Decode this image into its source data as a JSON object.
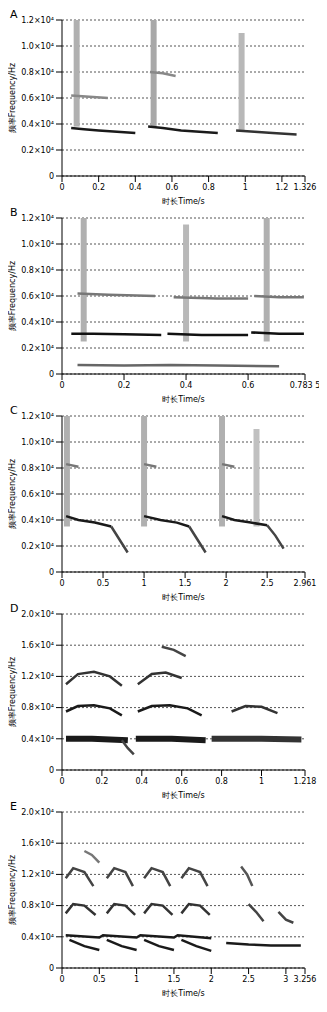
{
  "chart_data": [
    {
      "type": "line",
      "title": "A",
      "x_label": "时长Time/s",
      "y_label": "频率Frequency/Hz",
      "grid": true,
      "xlim": [
        0,
        1.326
      ],
      "xticks": [
        0,
        0.2,
        0.4,
        0.6,
        0.8,
        1,
        1.2,
        1.326
      ],
      "ylim": [
        0,
        12000
      ],
      "yticks": [
        0,
        {
          "value": 2000,
          "label": "0.2×10⁴"
        },
        {
          "value": 4000,
          "label": "0.4×10⁴"
        },
        {
          "value": 6000,
          "label": "0.6×10⁴"
        },
        {
          "value": 8000,
          "label": "0.8×10⁴"
        },
        {
          "value": 10000,
          "label": "1.0×10⁴"
        },
        {
          "value": 12000,
          "label": "1.2×10⁴"
        }
      ],
      "series": [
        {
          "type": "band",
          "color": "#b0b0b0",
          "x": [
            0.08,
            0.08
          ],
          "values": [
            3800,
            12000
          ]
        },
        {
          "type": "band",
          "color": "#a8a8a8",
          "x": [
            0.5,
            0.5
          ],
          "values": [
            3800,
            12000
          ]
        },
        {
          "type": "band",
          "color": "#b8b8b8",
          "x": [
            0.98,
            0.98
          ],
          "values": [
            3500,
            11000
          ]
        },
        {
          "type": "line",
          "color": "#888888",
          "x": [
            0.48,
            0.55,
            0.62
          ],
          "values": [
            8000,
            7900,
            7700
          ]
        },
        {
          "type": "line",
          "color": "#888888",
          "x": [
            0.05,
            0.15,
            0.25
          ],
          "values": [
            6200,
            6100,
            6000
          ]
        },
        {
          "type": "line",
          "color": "#1a1a1a",
          "x": [
            0.05,
            0.12,
            0.2,
            0.3,
            0.4
          ],
          "values": [
            3700,
            3600,
            3500,
            3400,
            3300
          ]
        },
        {
          "type": "line",
          "color": "#1a1a1a",
          "x": [
            0.47,
            0.55,
            0.65,
            0.75,
            0.85
          ],
          "values": [
            3800,
            3700,
            3500,
            3400,
            3300
          ]
        },
        {
          "type": "line",
          "color": "#333333",
          "x": [
            0.95,
            1.05,
            1.15,
            1.28
          ],
          "values": [
            3500,
            3400,
            3300,
            3200
          ]
        }
      ]
    },
    {
      "type": "line",
      "title": "B",
      "x_label": "时长Time/s",
      "y_label": "频率Frequency/Hz",
      "grid": true,
      "xlim": [
        0,
        0.7835
      ],
      "xticks": [
        0,
        0.2,
        0.4,
        0.6,
        {
          "value": 0.7835,
          "label": "0.783 5"
        }
      ],
      "ylim": [
        0,
        12000
      ],
      "yticks": [
        0,
        {
          "value": 2000,
          "label": "0.2×10⁴"
        },
        {
          "value": 4000,
          "label": "0.4×10⁴"
        },
        {
          "value": 6000,
          "label": "0.6×10⁴"
        },
        {
          "value": 8000,
          "label": "0.8×10⁴"
        },
        {
          "value": 10000,
          "label": "1.0×10⁴"
        },
        {
          "value": 12000,
          "label": "1.2×10⁴"
        }
      ],
      "series": [
        {
          "type": "band",
          "color": "#b0b0b0",
          "x": [
            0.07,
            0.07
          ],
          "values": [
            2500,
            12000
          ]
        },
        {
          "type": "band",
          "color": "#b8b8b8",
          "x": [
            0.4,
            0.4
          ],
          "values": [
            2500,
            11500
          ]
        },
        {
          "type": "band",
          "color": "#b0b0b0",
          "x": [
            0.66,
            0.66
          ],
          "values": [
            2500,
            12000
          ]
        },
        {
          "type": "line",
          "color": "#777777",
          "x": [
            0.05,
            0.15,
            0.3
          ],
          "values": [
            6200,
            6100,
            6000
          ]
        },
        {
          "type": "line",
          "color": "#777777",
          "x": [
            0.36,
            0.5,
            0.6
          ],
          "values": [
            5900,
            5800,
            5800
          ]
        },
        {
          "type": "line",
          "color": "#777777",
          "x": [
            0.62,
            0.7,
            0.78
          ],
          "values": [
            6000,
            5900,
            5900
          ]
        },
        {
          "type": "line",
          "color": "#111111",
          "x": [
            0.03,
            0.1,
            0.2,
            0.32
          ],
          "values": [
            3100,
            3100,
            3050,
            3000
          ]
        },
        {
          "type": "line",
          "color": "#111111",
          "x": [
            0.34,
            0.45,
            0.6
          ],
          "values": [
            3100,
            3000,
            3000
          ]
        },
        {
          "type": "line",
          "color": "#111111",
          "x": [
            0.61,
            0.7,
            0.78
          ],
          "values": [
            3200,
            3100,
            3100
          ]
        },
        {
          "type": "line",
          "color": "#666666",
          "x": [
            0.05,
            0.2,
            0.35,
            0.5,
            0.7
          ],
          "values": [
            700,
            650,
            700,
            650,
            600
          ]
        }
      ]
    },
    {
      "type": "line",
      "title": "C",
      "x_label": "时长Time/s",
      "y_label": "频率Frequency/Hz",
      "grid": true,
      "xlim": [
        0,
        2.961
      ],
      "xticks": [
        0,
        0.5,
        1,
        1.5,
        2,
        2.5,
        2.961
      ],
      "ylim": [
        0,
        12000
      ],
      "yticks": [
        0,
        {
          "value": 2000,
          "label": "0.2×10⁴"
        },
        {
          "value": 4000,
          "label": "0.4×10⁴"
        },
        {
          "value": 6000,
          "label": "0.6×10⁴"
        },
        {
          "value": 8000,
          "label": "0.8×10⁴"
        },
        {
          "value": 10000,
          "label": "1.0×10⁴"
        },
        {
          "value": 12000,
          "label": "1.2×10⁴"
        }
      ],
      "series": [
        {
          "type": "band",
          "color": "#b0b0b0",
          "x": [
            0.06,
            0.06
          ],
          "values": [
            3500,
            12000
          ]
        },
        {
          "type": "band",
          "color": "#b0b0b0",
          "x": [
            1.0,
            1.0
          ],
          "values": [
            3500,
            12000
          ]
        },
        {
          "type": "band",
          "color": "#b0b0b0",
          "x": [
            1.95,
            1.95
          ],
          "values": [
            3500,
            12000
          ]
        },
        {
          "type": "band",
          "color": "#c0c0c0",
          "x": [
            2.37,
            2.37
          ],
          "values": [
            3500,
            11000
          ]
        },
        {
          "type": "line",
          "color": "#777777",
          "x": [
            0.05,
            0.2
          ],
          "values": [
            8300,
            8100
          ]
        },
        {
          "type": "line",
          "color": "#777777",
          "x": [
            1.0,
            1.15
          ],
          "values": [
            8300,
            8100
          ]
        },
        {
          "type": "line",
          "color": "#777777",
          "x": [
            1.95,
            2.1
          ],
          "values": [
            8300,
            8100
          ]
        },
        {
          "type": "line",
          "color": "#1a1a1a",
          "x": [
            0.05,
            0.2,
            0.4,
            0.6
          ],
          "values": [
            4300,
            4000,
            3800,
            3500
          ]
        },
        {
          "type": "line",
          "color": "#444444",
          "x": [
            0.6,
            0.7,
            0.8
          ],
          "values": [
            3500,
            2500,
            1500
          ]
        },
        {
          "type": "line",
          "color": "#1a1a1a",
          "x": [
            1.0,
            1.2,
            1.4,
            1.55
          ],
          "values": [
            4300,
            4000,
            3800,
            3500
          ]
        },
        {
          "type": "line",
          "color": "#444444",
          "x": [
            1.55,
            1.65,
            1.75
          ],
          "values": [
            3500,
            2500,
            1500
          ]
        },
        {
          "type": "line",
          "color": "#1a1a1a",
          "x": [
            1.95,
            2.1,
            2.3,
            2.5
          ],
          "values": [
            4300,
            4000,
            3800,
            3600
          ]
        },
        {
          "type": "line",
          "color": "#444444",
          "x": [
            2.5,
            2.6,
            2.7
          ],
          "values": [
            3600,
            2800,
            1800
          ]
        }
      ]
    },
    {
      "type": "line",
      "title": "D",
      "x_label": "时长Time/s",
      "y_label": "频率Frequency/Hz",
      "grid": true,
      "xlim": [
        0,
        1.218
      ],
      "xticks": [
        0,
        0.2,
        0.4,
        0.6,
        0.8,
        1,
        1.218
      ],
      "ylim": [
        0,
        20000
      ],
      "yticks": [
        0,
        {
          "value": 4000,
          "label": "0.4×10⁴"
        },
        {
          "value": 8000,
          "label": "0.8×10⁴"
        },
        {
          "value": 12000,
          "label": "1.2×10⁴"
        },
        {
          "value": 16000,
          "label": "1.6×10⁴"
        },
        {
          "value": 20000,
          "label": "2.0×10⁴"
        }
      ],
      "series": [
        {
          "type": "band",
          "color": "#1a1a1a",
          "x": [
            0.02,
            0.15,
            0.33
          ],
          "values": [
            4000,
            4000,
            3800
          ]
        },
        {
          "type": "band",
          "color": "#1a1a1a",
          "x": [
            0.37,
            0.55,
            0.72
          ],
          "values": [
            4000,
            4000,
            3800
          ]
        },
        {
          "type": "band",
          "color": "#333333",
          "x": [
            0.75,
            1.0,
            1.2
          ],
          "values": [
            4000,
            4000,
            3900
          ]
        },
        {
          "type": "line",
          "color": "#1a1a1a",
          "x": [
            0.02,
            0.08,
            0.16,
            0.24,
            0.3
          ],
          "values": [
            7500,
            8200,
            8300,
            7900,
            7000
          ]
        },
        {
          "type": "line",
          "color": "#1a1a1a",
          "x": [
            0.38,
            0.45,
            0.54,
            0.63,
            0.7
          ],
          "values": [
            7500,
            8200,
            8300,
            7900,
            7000
          ]
        },
        {
          "type": "line",
          "color": "#333333",
          "x": [
            0.85,
            0.92,
            1.0,
            1.08
          ],
          "values": [
            7500,
            8200,
            8100,
            7300
          ]
        },
        {
          "type": "line",
          "color": "#333333",
          "x": [
            0.02,
            0.08,
            0.16,
            0.24,
            0.3
          ],
          "values": [
            11000,
            12300,
            12600,
            12000,
            10800
          ]
        },
        {
          "type": "line",
          "color": "#333333",
          "x": [
            0.38,
            0.45,
            0.52,
            0.6
          ],
          "values": [
            11000,
            12300,
            12500,
            11800
          ]
        },
        {
          "type": "line",
          "color": "#444444",
          "x": [
            0.5,
            0.56,
            0.62
          ],
          "values": [
            15800,
            15400,
            14600
          ]
        },
        {
          "type": "line",
          "color": "#444444",
          "x": [
            0.3,
            0.33,
            0.36
          ],
          "values": [
            3800,
            2800,
            2000
          ]
        }
      ]
    },
    {
      "type": "line",
      "title": "E",
      "x_label": "时长Time/s",
      "y_label": "频率Frequency/Hz",
      "grid": true,
      "xlim": [
        0,
        3.256
      ],
      "xticks": [
        0,
        0.5,
        1,
        1.5,
        2,
        2.5,
        3,
        3.256
      ],
      "ylim": [
        0,
        20000
      ],
      "yticks": [
        0,
        {
          "value": 4000,
          "label": "0.4×10⁴"
        },
        {
          "value": 8000,
          "label": "0.8×10⁴"
        },
        {
          "value": 12000,
          "label": "1.2×10⁴"
        },
        {
          "value": 16000,
          "label": "1.6×10⁴"
        },
        {
          "value": 20000,
          "label": "2.0×10⁴"
        }
      ],
      "series": [
        {
          "type": "line",
          "color": "#1a1a1a",
          "x": [
            0.05,
            0.5,
            0.55,
            1.0,
            1.05,
            1.5,
            1.55,
            2.0
          ],
          "values": [
            4200,
            3900,
            4200,
            3900,
            4200,
            3900,
            4200,
            3800
          ]
        },
        {
          "type": "line",
          "color": "#1a1a1a",
          "x": [
            0.1,
            0.3,
            0.5
          ],
          "values": [
            3600,
            2800,
            2300
          ]
        },
        {
          "type": "line",
          "color": "#1a1a1a",
          "x": [
            0.6,
            0.8,
            1.0
          ],
          "values": [
            3600,
            2800,
            2300
          ]
        },
        {
          "type": "line",
          "color": "#1a1a1a",
          "x": [
            1.1,
            1.3,
            1.5
          ],
          "values": [
            3600,
            2800,
            2300
          ]
        },
        {
          "type": "line",
          "color": "#1a1a1a",
          "x": [
            1.6,
            1.8,
            2.0
          ],
          "values": [
            3600,
            2800,
            2200
          ]
        },
        {
          "type": "line",
          "color": "#1a1a1a",
          "x": [
            2.2,
            2.5,
            2.8,
            3.2
          ],
          "values": [
            3200,
            3000,
            2900,
            2900
          ]
        },
        {
          "type": "line",
          "color": "#333333",
          "x": [
            0.05,
            0.15,
            0.3,
            0.45
          ],
          "values": [
            7000,
            8200,
            8000,
            6800
          ]
        },
        {
          "type": "line",
          "color": "#333333",
          "x": [
            0.6,
            0.7,
            0.85,
            0.98
          ],
          "values": [
            7000,
            8200,
            8000,
            6800
          ]
        },
        {
          "type": "line",
          "color": "#333333",
          "x": [
            1.1,
            1.2,
            1.35,
            1.48
          ],
          "values": [
            7000,
            8200,
            8000,
            6800
          ]
        },
        {
          "type": "line",
          "color": "#333333",
          "x": [
            1.6,
            1.7,
            1.85,
            1.98
          ],
          "values": [
            7000,
            8200,
            8000,
            6800
          ]
        },
        {
          "type": "line",
          "color": "#444444",
          "x": [
            2.5,
            2.6,
            2.7
          ],
          "values": [
            8200,
            7200,
            6000
          ]
        },
        {
          "type": "line",
          "color": "#444444",
          "x": [
            2.9,
            3.0,
            3.1
          ],
          "values": [
            7200,
            6200,
            5800
          ]
        },
        {
          "type": "line",
          "color": "#444444",
          "x": [
            0.05,
            0.15,
            0.3,
            0.42
          ],
          "values": [
            11500,
            12800,
            12300,
            10500
          ]
        },
        {
          "type": "line",
          "color": "#444444",
          "x": [
            0.6,
            0.7,
            0.85,
            0.95
          ],
          "values": [
            11500,
            12800,
            12300,
            10500
          ]
        },
        {
          "type": "line",
          "color": "#444444",
          "x": [
            1.1,
            1.2,
            1.35,
            1.45
          ],
          "values": [
            11500,
            12800,
            12300,
            10500
          ]
        },
        {
          "type": "line",
          "color": "#444444",
          "x": [
            1.6,
            1.7,
            1.85,
            1.95
          ],
          "values": [
            11500,
            12800,
            12300,
            10500
          ]
        },
        {
          "type": "line",
          "color": "#555555",
          "x": [
            2.4,
            2.48,
            2.55
          ],
          "values": [
            13000,
            12000,
            10500
          ]
        },
        {
          "type": "line",
          "color": "#777777",
          "x": [
            0.3,
            0.4,
            0.5
          ],
          "values": [
            15000,
            14500,
            13500
          ]
        }
      ]
    }
  ]
}
